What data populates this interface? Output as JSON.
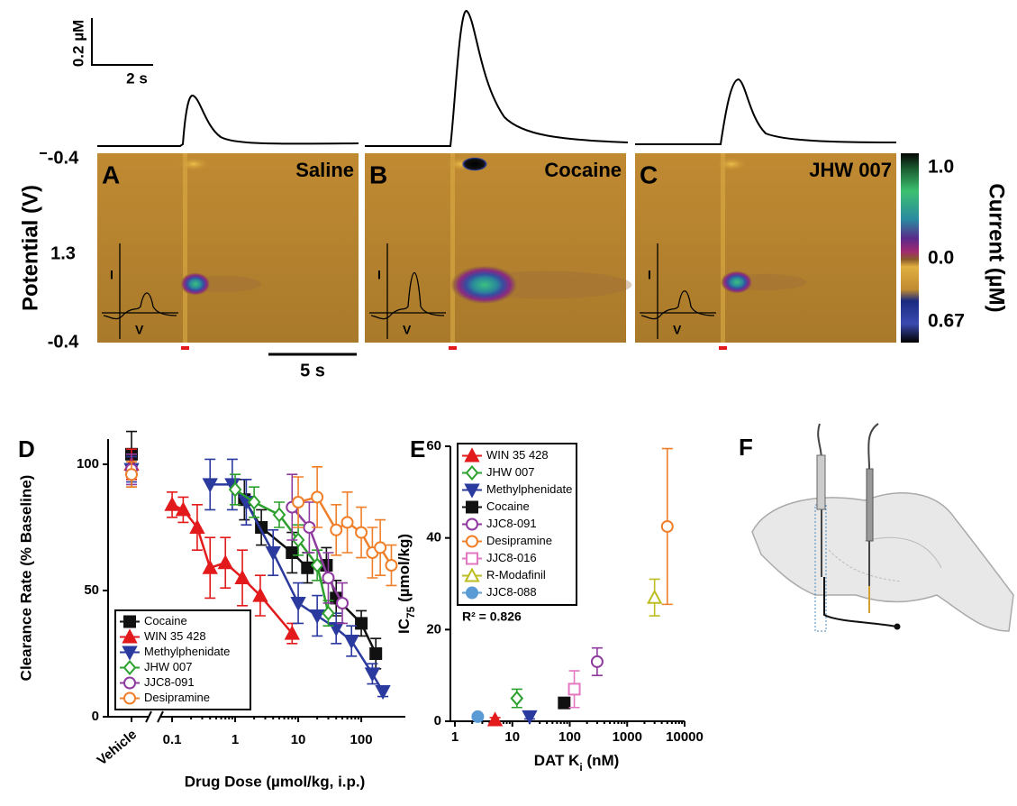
{
  "scale_bar": {
    "concentration": "0.2 µM",
    "time": "2 s"
  },
  "potential_axis": {
    "label": "Potential (V)",
    "ticks": [
      "-0.4",
      "1.3",
      "-0.4"
    ]
  },
  "panels": [
    {
      "letter": "A",
      "drug": "Saline"
    },
    {
      "letter": "B",
      "drug": "Cocaine"
    },
    {
      "letter": "C",
      "drug": "JHW 007"
    }
  ],
  "inset_axes": {
    "current": "I",
    "voltage": "V"
  },
  "time_bar": "5 s",
  "colorbar": {
    "label": "Current (µM)",
    "ticks": [
      "1.0",
      "0.0",
      "0.67"
    ]
  },
  "panel_f": {
    "letter": "F"
  },
  "chart_data": [
    {
      "type": "line",
      "letter": "D",
      "ylabel": "Clearance Rate (% Baseline)",
      "xlabel": "Drug Dose (µmol/kg, i.p.)",
      "vehicle_label": "Vehicle",
      "xscale": "log",
      "xlim": [
        0.05,
        500
      ],
      "xticks": [
        0.1,
        1,
        10,
        100
      ],
      "ylim": [
        0,
        110
      ],
      "yticks": [
        0,
        50,
        100
      ],
      "legend": "lower left",
      "series": [
        {
          "name": "Cocaine",
          "color": "#111111",
          "marker": "square",
          "filled": true,
          "vehicle": {
            "value": 104,
            "error": 9
          },
          "x": [
            1.4,
            2.6,
            8,
            14,
            28,
            40,
            100,
            170
          ],
          "values": [
            86,
            75,
            65,
            59,
            60,
            47,
            37,
            25
          ],
          "errors": [
            8,
            7,
            8,
            6,
            7,
            7,
            5,
            6
          ]
        },
        {
          "name": "WIN 35 428",
          "color": "#e31a1c",
          "marker": "triangle",
          "filled": true,
          "vehicle": {
            "value": 100,
            "error": 6
          },
          "x": [
            0.1,
            0.15,
            0.25,
            0.4,
            0.7,
            1.3,
            2.5,
            8
          ],
          "values": [
            84,
            82,
            75,
            59,
            61,
            55,
            48,
            33
          ],
          "errors": [
            5,
            5,
            9,
            12,
            10,
            11,
            8,
            4
          ]
        },
        {
          "name": "Methylphenidate",
          "color": "#2b3a9e",
          "marker": "triangle-down",
          "filled": true,
          "vehicle": {
            "value": 98,
            "error": 5
          },
          "x": [
            0.4,
            0.9,
            1.5,
            4,
            10,
            20,
            40,
            70,
            150,
            220
          ],
          "values": [
            92,
            92,
            85,
            65,
            45,
            40,
            35,
            30,
            17,
            10
          ],
          "errors": [
            10,
            10,
            9,
            9,
            8,
            8,
            6,
            6,
            4,
            2
          ]
        },
        {
          "name": "JHW 007",
          "color": "#2ca02c",
          "marker": "diamond",
          "filled": false,
          "vehicle": {
            "value": 96,
            "error": 5
          },
          "x": [
            1,
            2,
            5,
            10,
            20,
            30
          ],
          "values": [
            90,
            85,
            80,
            70,
            60,
            41
          ],
          "errors": [
            6,
            6,
            5,
            6,
            6,
            5
          ]
        },
        {
          "name": "JJC8-091",
          "color": "#8e3a9e",
          "marker": "circle",
          "filled": false,
          "vehicle": {
            "value": 98,
            "error": 6
          },
          "x": [
            8,
            15,
            30,
            50
          ],
          "values": [
            83,
            75,
            55,
            45
          ],
          "errors": [
            13,
            10,
            10,
            8
          ]
        },
        {
          "name": "Desipramine",
          "color": "#f07f2a",
          "marker": "circle",
          "filled": false,
          "vehicle": {
            "value": 96,
            "error": 5
          },
          "x": [
            10,
            20,
            40,
            60,
            100,
            150,
            200,
            300
          ],
          "values": [
            85,
            87,
            74,
            77,
            73,
            65,
            67,
            60
          ],
          "errors": [
            10,
            12,
            10,
            12,
            10,
            10,
            11,
            8
          ]
        }
      ]
    },
    {
      "type": "scatter",
      "letter": "E",
      "ylabel": [
        "IC",
        "75",
        " (µmol/kg)"
      ],
      "xlabel": [
        "DAT K",
        "i",
        " (nM)"
      ],
      "annotation": "R² = 0.826",
      "xscale": "log",
      "xlim": [
        1,
        10000
      ],
      "xticks": [
        1,
        10,
        100,
        1000,
        10000
      ],
      "ylim": [
        0,
        60
      ],
      "yticks": [
        0,
        20,
        40,
        60
      ],
      "legend": "upper left",
      "series": [
        {
          "name": "WIN 35 428",
          "color": "#e31a1c",
          "marker": "triangle",
          "filled": true,
          "x": [
            5
          ],
          "values": [
            0.3
          ],
          "errors": [
            0.5
          ]
        },
        {
          "name": "JHW 007",
          "color": "#2ca02c",
          "marker": "diamond",
          "filled": false,
          "x": [
            12
          ],
          "values": [
            5
          ],
          "errors": [
            2
          ]
        },
        {
          "name": "Methylphenidate",
          "color": "#2b3a9e",
          "marker": "triangle-down",
          "filled": true,
          "x": [
            20
          ],
          "values": [
            1
          ],
          "errors": [
            0.5
          ]
        },
        {
          "name": "Cocaine",
          "color": "#111111",
          "marker": "square",
          "filled": true,
          "x": [
            80
          ],
          "values": [
            4
          ],
          "errors": [
            0.5
          ]
        },
        {
          "name": "JJC8-091",
          "color": "#8e3a9e",
          "marker": "circle",
          "filled": false,
          "x": [
            300
          ],
          "values": [
            13
          ],
          "errors": [
            3
          ]
        },
        {
          "name": "Desipramine",
          "color": "#f07f2a",
          "marker": "circle",
          "filled": false,
          "x": [
            5000
          ],
          "values": [
            42.5
          ],
          "errors": [
            17
          ]
        },
        {
          "name": "JJC8-016",
          "color": "#e377c2",
          "marker": "square",
          "filled": false,
          "x": [
            120
          ],
          "values": [
            7
          ],
          "errors": [
            4
          ]
        },
        {
          "name": "R-Modafinil",
          "color": "#bcbd22",
          "marker": "triangle",
          "filled": false,
          "x": [
            3000
          ],
          "values": [
            27
          ],
          "errors": [
            4
          ]
        },
        {
          "name": "JJC8-088",
          "color": "#5b9bd5",
          "marker": "circle",
          "filled": true,
          "x": [
            2.5
          ],
          "values": [
            1
          ],
          "errors": [
            0.5
          ]
        }
      ]
    }
  ]
}
